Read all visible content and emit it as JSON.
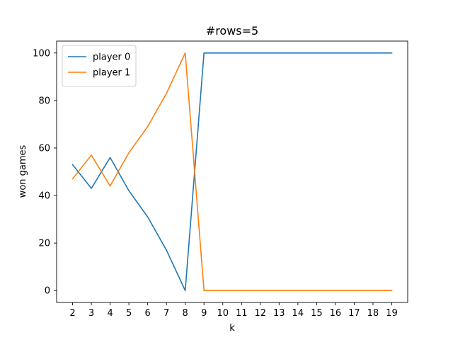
{
  "chart_data": {
    "type": "line",
    "title": "#rows=5",
    "xlabel": "k",
    "ylabel": "won games",
    "x": [
      2,
      3,
      4,
      5,
      6,
      7,
      8,
      9,
      10,
      11,
      12,
      13,
      14,
      15,
      16,
      17,
      18,
      19
    ],
    "xlim": [
      1.15,
      19.85
    ],
    "ylim": [
      -5,
      105
    ],
    "xticks": [
      "2",
      "3",
      "4",
      "5",
      "6",
      "7",
      "8",
      "9",
      "10",
      "11",
      "12",
      "13",
      "14",
      "15",
      "16",
      "17",
      "18",
      "19"
    ],
    "yticks": [
      0,
      20,
      40,
      60,
      80,
      100
    ],
    "grid": false,
    "legend_position": "top-left",
    "series": [
      {
        "name": "player 0",
        "color": "#1f77b4",
        "values": [
          53,
          43,
          56,
          42,
          31,
          17,
          0,
          100,
          100,
          100,
          100,
          100,
          100,
          100,
          100,
          100,
          100,
          100
        ]
      },
      {
        "name": "player 1",
        "color": "#ff7f0e",
        "values": [
          47,
          57,
          44,
          58,
          69,
          83,
          100,
          0,
          0,
          0,
          0,
          0,
          0,
          0,
          0,
          0,
          0,
          0
        ]
      }
    ]
  }
}
